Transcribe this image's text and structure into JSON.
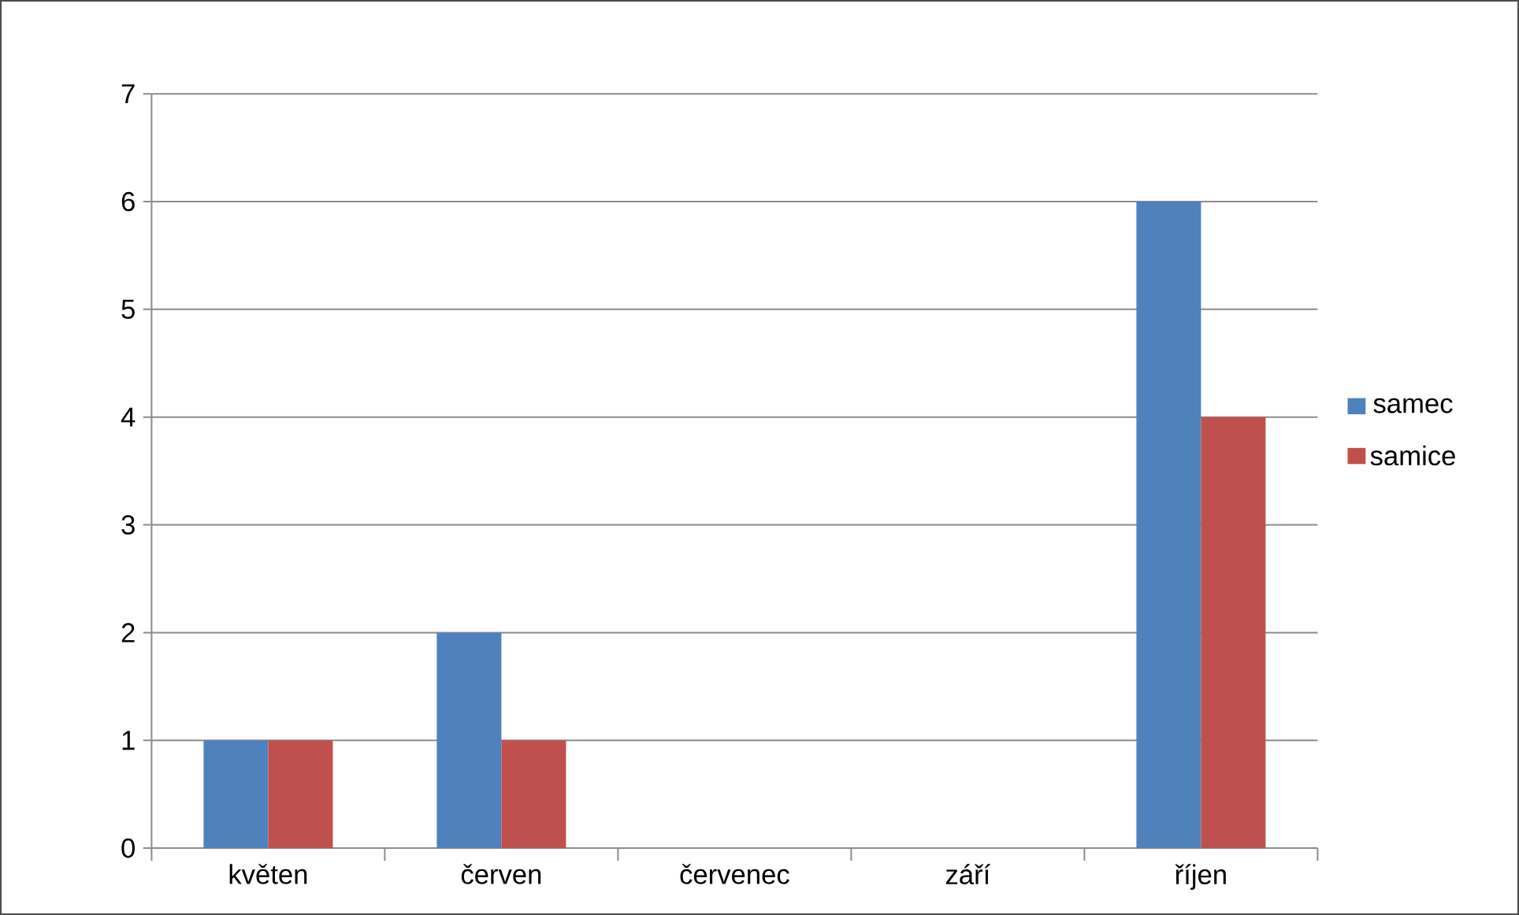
{
  "chart_data": {
    "type": "bar",
    "categories": [
      "květen",
      "červen",
      "červenec",
      "září",
      "říjen"
    ],
    "series": [
      {
        "name": "samec",
        "color": "#4f81bd",
        "values": [
          1,
          2,
          0,
          0,
          6
        ]
      },
      {
        "name": "samice",
        "color": "#c0504d",
        "values": [
          1,
          1,
          0,
          0,
          4
        ]
      }
    ],
    "ylim": [
      0,
      7
    ],
    "yticks": [
      0,
      1,
      2,
      3,
      4,
      5,
      6,
      7
    ],
    "grid": "y",
    "legend": "right"
  }
}
